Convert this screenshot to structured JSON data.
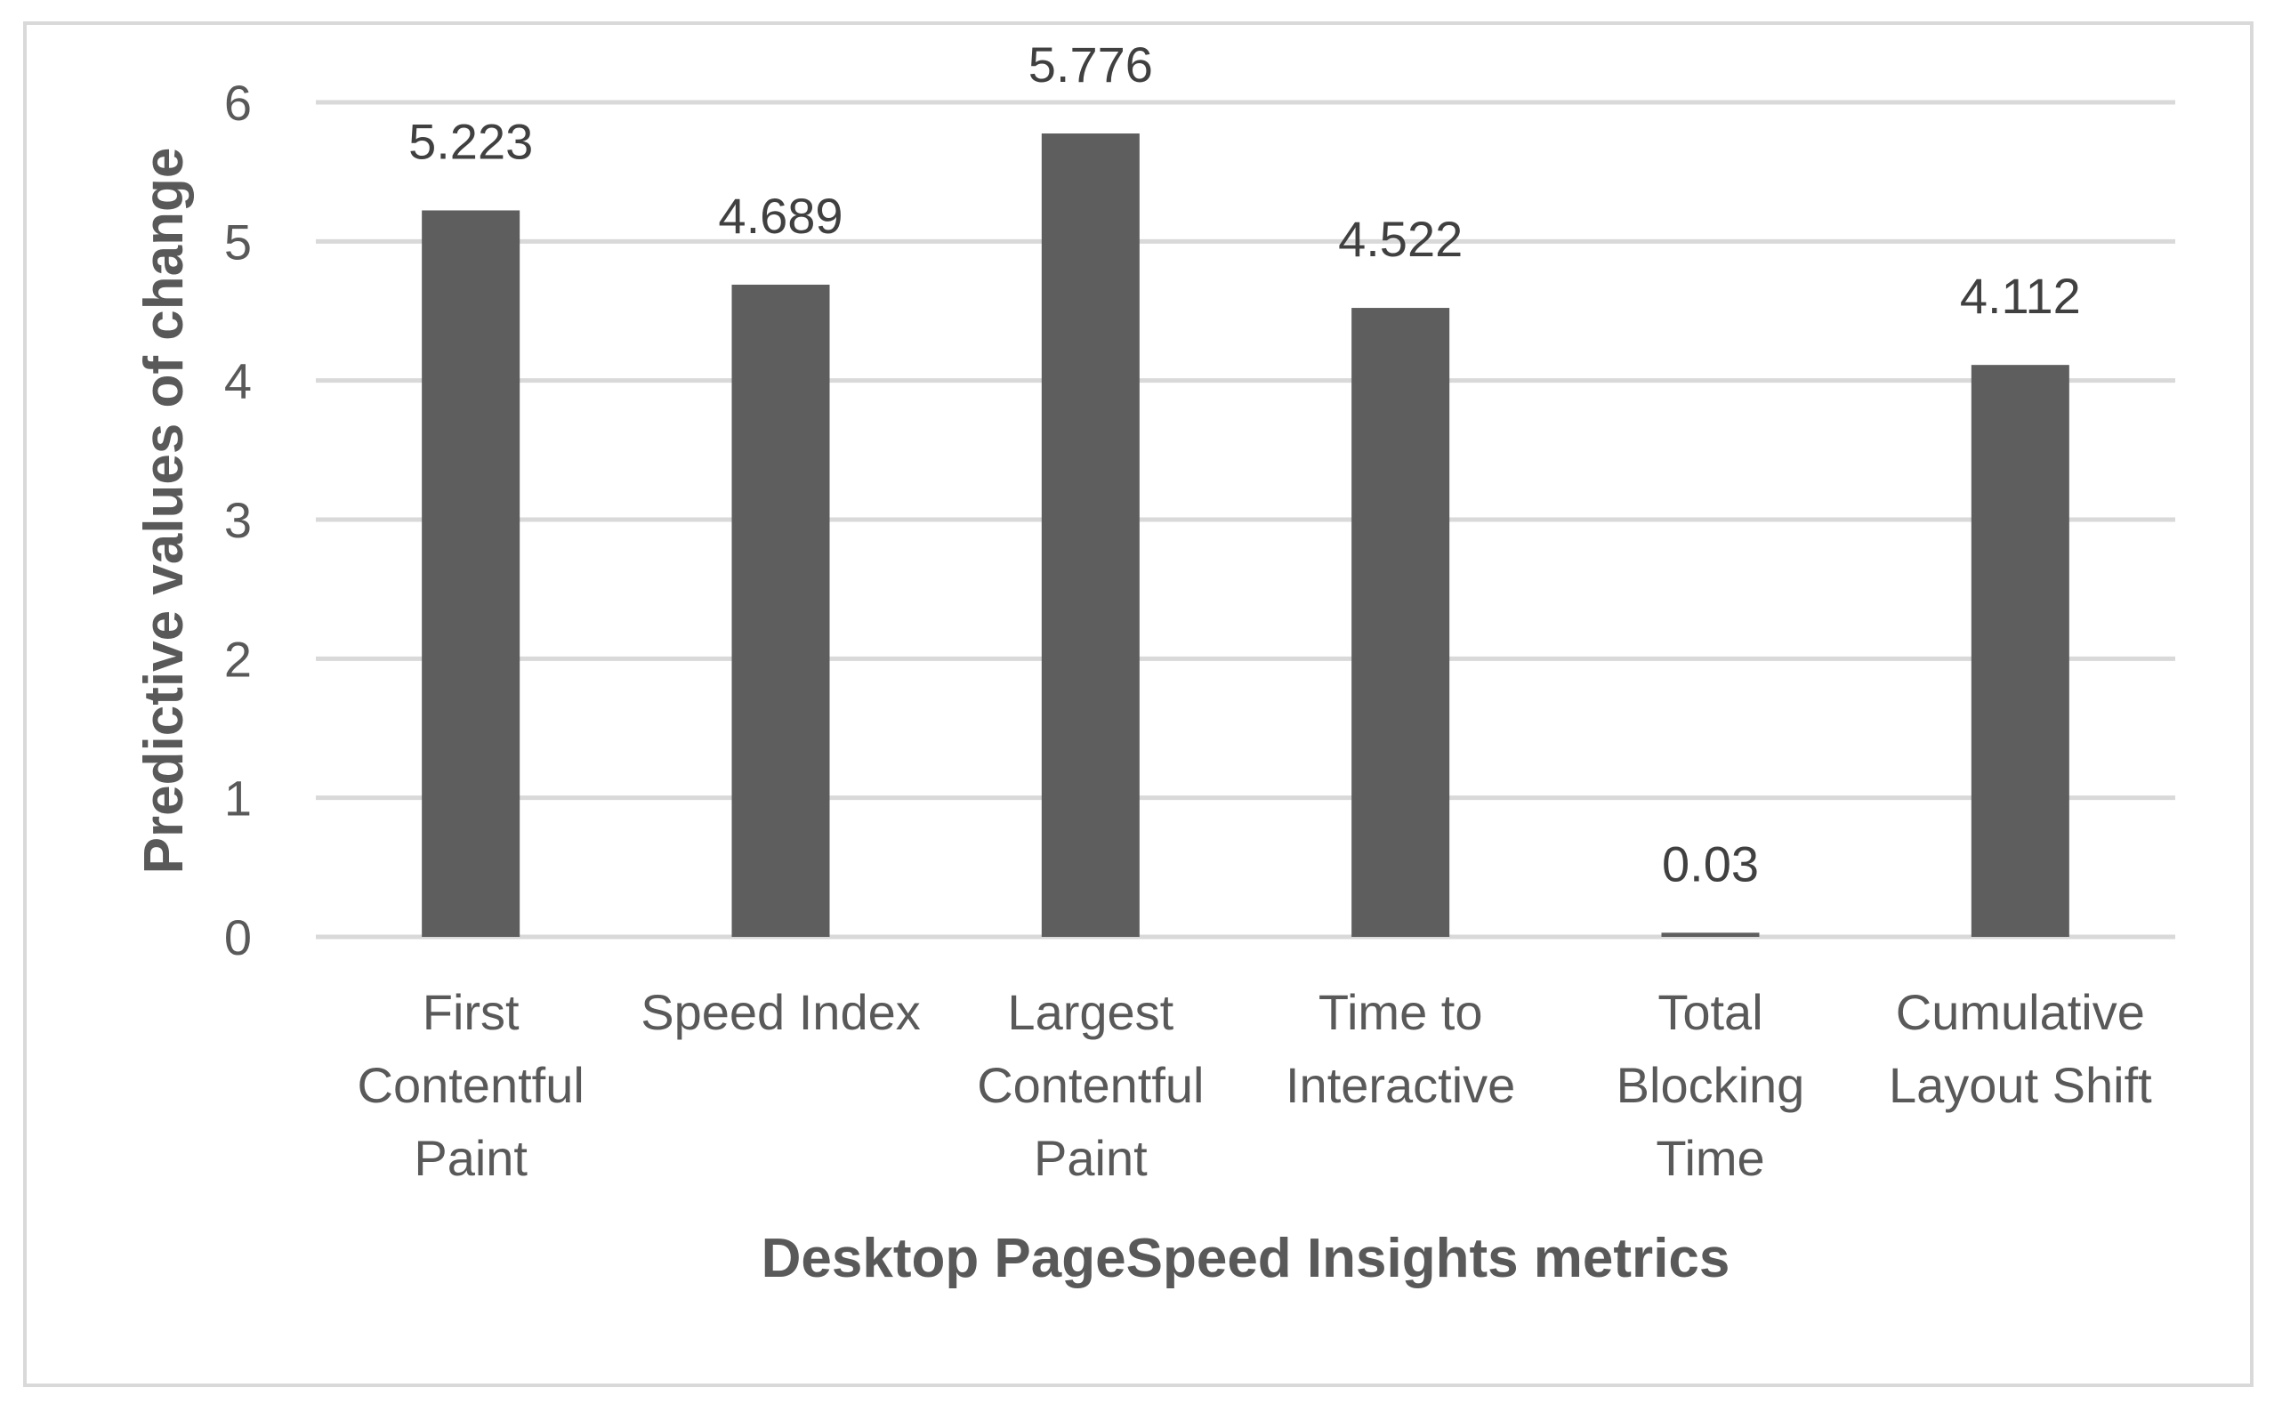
{
  "chart_data": {
    "type": "bar",
    "categories": [
      [
        "First",
        "Contentful",
        "Paint"
      ],
      [
        "Speed Index"
      ],
      [
        "Largest",
        "Contentful",
        "Paint"
      ],
      [
        "Time to",
        "Interactive"
      ],
      [
        "Total",
        "Blocking",
        "Time"
      ],
      [
        "Cumulative",
        "Layout Shift"
      ]
    ],
    "values": [
      5.223,
      4.689,
      5.776,
      4.522,
      0.03,
      4.112
    ],
    "data_labels": [
      "5.223",
      "4.689",
      "5.776",
      "4.522",
      "0.03",
      "4.112"
    ],
    "title": "",
    "xlabel": "Desktop PageSpeed Insights metrics",
    "ylabel": "Predictive values of change",
    "ylim": [
      0,
      6
    ],
    "yticks": [
      0,
      1,
      2,
      3,
      4,
      5,
      6
    ],
    "grid": true,
    "legend": "none",
    "colors": {
      "bar": "#5e5e5e",
      "grid": "#d9d9d9",
      "frame": "#d9d9d9"
    }
  }
}
